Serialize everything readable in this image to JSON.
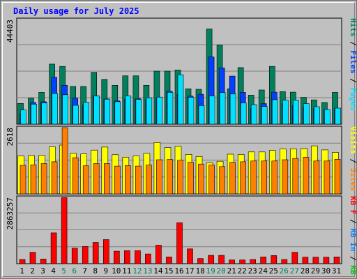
{
  "chart_data": [
    {
      "type": "bar",
      "panel": "hits-files-pages",
      "title": "Daily usage for July 2025",
      "categories": [
        "1",
        "2",
        "3",
        "4",
        "5",
        "6",
        "7",
        "8",
        "9",
        "10",
        "11",
        "12",
        "13",
        "14",
        "15",
        "16",
        "17",
        "18",
        "19",
        "20",
        "21",
        "22",
        "23",
        "24",
        "25",
        "26",
        "27",
        "28",
        "29",
        "30",
        "31"
      ],
      "weekend_days": [
        "5",
        "6",
        "12",
        "13",
        "19",
        "20",
        "26",
        "27"
      ],
      "ymax_label": "44403",
      "ylim": [
        0,
        44403
      ],
      "grid": true,
      "legend_placement": "right",
      "series": [
        {
          "name": "Hits",
          "color": "#00805c",
          "values": [
            8800,
            11000,
            13500,
            25500,
            24500,
            16000,
            16000,
            22000,
            19000,
            16500,
            20500,
            20500,
            16500,
            22500,
            22500,
            23000,
            15000,
            14800,
            40400,
            33500,
            15000,
            24000,
            12300,
            14500,
            24500,
            13800,
            13600,
            11400,
            10300,
            9200,
            13500
          ]
        },
        {
          "name": "Files",
          "color": "#0040ff",
          "values": [
            4300,
            9200,
            9500,
            19900,
            16500,
            11000,
            8200,
            12000,
            10700,
            9900,
            10600,
            10800,
            10500,
            11100,
            14000,
            12700,
            11900,
            12700,
            28500,
            23900,
            20400,
            13500,
            6600,
            8700,
            13600,
            8600,
            7900,
            7000,
            6600,
            6000,
            6600
          ]
        },
        {
          "name": "Pages",
          "color": "#00e0ff",
          "values": [
            6000,
            8500,
            9000,
            13000,
            12500,
            8000,
            9300,
            12000,
            10600,
            9500,
            12000,
            10500,
            11200,
            11500,
            13500,
            21000,
            11400,
            7900,
            12000,
            13400,
            12800,
            9000,
            8300,
            7500,
            10400,
            10200,
            10200,
            8700,
            7400,
            6200,
            6800
          ]
        }
      ]
    },
    {
      "type": "bar",
      "panel": "visits-sites",
      "categories": [
        "1",
        "2",
        "3",
        "4",
        "5",
        "6",
        "7",
        "8",
        "9",
        "10",
        "11",
        "12",
        "13",
        "14",
        "15",
        "16",
        "17",
        "18",
        "19",
        "20",
        "21",
        "22",
        "23",
        "24",
        "25",
        "26",
        "27",
        "28",
        "29",
        "30",
        "31"
      ],
      "ymax_label": "2618",
      "ylim": [
        0,
        2618
      ],
      "grid": true,
      "legend_placement": "right",
      "series": [
        {
          "name": "Visits",
          "color": "#ffff00",
          "values": [
            1500,
            1520,
            1530,
            1860,
            1930,
            1600,
            1580,
            1730,
            1850,
            1550,
            1450,
            1500,
            1600,
            2030,
            1830,
            1880,
            1560,
            1480,
            1230,
            1290,
            1570,
            1560,
            1660,
            1660,
            1720,
            1780,
            1780,
            1790,
            1900,
            1740,
            1640
          ]
        },
        {
          "name": "Sites",
          "color": "#ff8000",
          "values": [
            1130,
            1150,
            1200,
            1270,
            2620,
            1430,
            1110,
            1200,
            1200,
            1100,
            1120,
            1100,
            1140,
            1350,
            1360,
            1330,
            1250,
            1180,
            1140,
            1080,
            1250,
            1270,
            1300,
            1300,
            1300,
            1350,
            1400,
            1450,
            1300,
            1300,
            1370
          ]
        }
      ]
    },
    {
      "type": "bar",
      "panel": "kbytes",
      "categories": [
        "1",
        "2",
        "3",
        "4",
        "5",
        "6",
        "7",
        "8",
        "9",
        "10",
        "11",
        "12",
        "13",
        "14",
        "15",
        "16",
        "17",
        "18",
        "19",
        "20",
        "21",
        "22",
        "23",
        "24",
        "25",
        "26",
        "27",
        "28",
        "29",
        "30",
        "31"
      ],
      "ymax_label": "2863257",
      "ylim": [
        0,
        2863257
      ],
      "grid": true,
      "legend_placement": "right",
      "series": [
        {
          "name": "KB F",
          "color": "#ff0000",
          "values": [
            180000,
            490000,
            200000,
            1330000,
            2860000,
            670000,
            740000,
            920000,
            1040000,
            540000,
            560000,
            560000,
            420000,
            800000,
            290000,
            1770000,
            640000,
            220000,
            360000,
            360000,
            160000,
            160000,
            180000,
            290000,
            350000,
            180000,
            490000,
            280000,
            280000,
            280000,
            290000
          ]
        }
      ]
    }
  ],
  "legend": {
    "top": [
      {
        "label": "Hits",
        "color": "#00805c"
      },
      {
        "label": " / ",
        "color": "#000000"
      },
      {
        "label": "Files",
        "color": "#0040ff"
      },
      {
        "label": " / ",
        "color": "#000000"
      },
      {
        "label": "Pages",
        "color": "#00e0ff"
      }
    ],
    "middle": [
      {
        "label": "Visits",
        "color": "#ffff00"
      },
      {
        "label": " / ",
        "color": "#000000"
      },
      {
        "label": "Sites",
        "color": "#ff8000"
      }
    ],
    "bottom": [
      {
        "label": "KB F",
        "color": "#ff0000"
      },
      {
        "label": " / ",
        "color": "#000000"
      },
      {
        "label": "KB In",
        "color": "#0080ff"
      },
      {
        "label": " / ",
        "color": "#000000"
      },
      {
        "label": "KB Out",
        "color": "#00c000"
      }
    ]
  },
  "colors": {
    "title": "#0000ff",
    "day_label": "#000000",
    "weekend_label": "#00805c",
    "panel_bg": "#c0c0c0",
    "grid": "#808080"
  }
}
